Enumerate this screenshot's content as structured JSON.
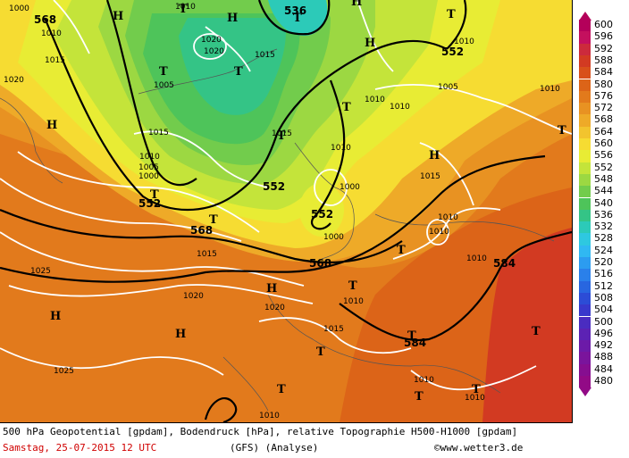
{
  "legend": {
    "levels": [
      {
        "value": "600",
        "color": "#b4005a"
      },
      {
        "value": "596",
        "color": "#c4105e"
      },
      {
        "value": "592",
        "color": "#cc2a3c"
      },
      {
        "value": "588",
        "color": "#d23a22"
      },
      {
        "value": "584",
        "color": "#d8501a"
      },
      {
        "value": "580",
        "color": "#dc6418"
      },
      {
        "value": "576",
        "color": "#e27a1c"
      },
      {
        "value": "572",
        "color": "#e89222"
      },
      {
        "value": "568",
        "color": "#eeaa28"
      },
      {
        "value": "564",
        "color": "#f2c42e"
      },
      {
        "value": "560",
        "color": "#f6dc32"
      },
      {
        "value": "556",
        "color": "#e8ec34"
      },
      {
        "value": "552",
        "color": "#c4e43a"
      },
      {
        "value": "548",
        "color": "#9cd842"
      },
      {
        "value": "544",
        "color": "#72cc4c"
      },
      {
        "value": "540",
        "color": "#4ec45a"
      },
      {
        "value": "536",
        "color": "#34c486"
      },
      {
        "value": "532",
        "color": "#2ccab8"
      },
      {
        "value": "528",
        "color": "#2ec8e0"
      },
      {
        "value": "524",
        "color": "#30b8f2"
      },
      {
        "value": "520",
        "color": "#2c9cf0"
      },
      {
        "value": "516",
        "color": "#2a80ea"
      },
      {
        "value": "512",
        "color": "#2866e0"
      },
      {
        "value": "508",
        "color": "#2c4cd6"
      },
      {
        "value": "504",
        "color": "#3838cc"
      },
      {
        "value": "500",
        "color": "#4a2cc0"
      },
      {
        "value": "496",
        "color": "#5c22b4"
      },
      {
        "value": "492",
        "color": "#6c1aa8"
      },
      {
        "value": "488",
        "color": "#7a149c"
      },
      {
        "value": "484",
        "color": "#860e90"
      },
      {
        "value": "480",
        "color": "#920a86"
      }
    ]
  },
  "caption": {
    "line1": "500 hPa Geopotential [gpdam], Bodendruck [hPa], relative Topographie H500-H1000 [gpdam]",
    "date": "Samstag, 25-07-2015  12 UTC",
    "model": "(GFS)  (Analyse)",
    "copyright": "©www.wetter3.de"
  },
  "map": {
    "geopotential_labels": [
      "568",
      "536",
      "552",
      "552",
      "552",
      "552",
      "568",
      "568",
      "584",
      "584"
    ],
    "pressure_labels": [
      "1000",
      "1010",
      "1015",
      "1020",
      "1020",
      "1020",
      "1015",
      "1010",
      "1005",
      "1010",
      "1010",
      "1010",
      "1015",
      "1015",
      "1010",
      "1005",
      "1000",
      "1010",
      "1005",
      "1000",
      "1010",
      "1015",
      "1010",
      "1010",
      "1010",
      "1025",
      "1020",
      "1020",
      "1015",
      "1010",
      "1015",
      "1025",
      "1010",
      "1010",
      "1010",
      "1000"
    ],
    "pressure_systems": [
      "H",
      "H",
      "H",
      "H",
      "H",
      "H",
      "H",
      "H",
      "H",
      "T",
      "T",
      "T",
      "T",
      "T",
      "T",
      "T",
      "T",
      "T",
      "T",
      "T",
      "T",
      "T",
      "T",
      "T",
      "T",
      "T",
      "T"
    ]
  }
}
